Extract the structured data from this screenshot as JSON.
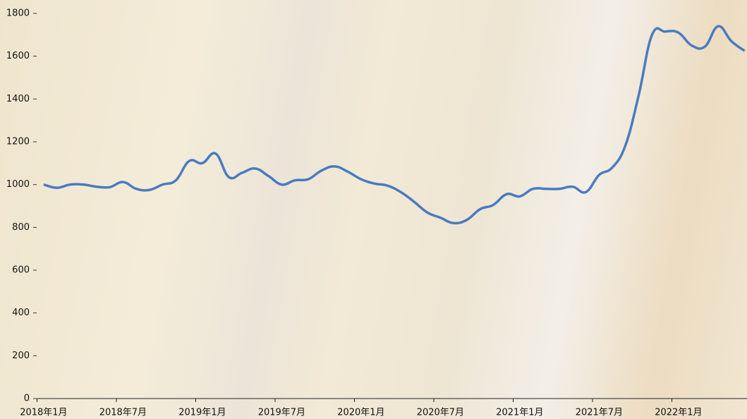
{
  "chart_data": {
    "type": "line",
    "categories": [
      "2018年1月",
      null,
      null,
      null,
      null,
      null,
      "2018年7月",
      null,
      null,
      null,
      null,
      null,
      "2019年1月",
      null,
      null,
      null,
      null,
      null,
      "2019年7月",
      null,
      null,
      null,
      null,
      null,
      "2020年1月",
      null,
      null,
      null,
      null,
      null,
      "2020年7月",
      null,
      null,
      null,
      null,
      null,
      "2021年1月",
      null,
      null,
      null,
      null,
      null,
      "2021年7月",
      null,
      null,
      null,
      null,
      null,
      "2022年1月",
      null,
      null,
      null,
      null,
      null
    ],
    "series": [
      {
        "color": "#4a7bbf",
        "values": [
          1000,
          985,
          1000,
          1000,
          990,
          988,
          1012,
          980,
          975,
          1000,
          1020,
          1110,
          1100,
          1145,
          1035,
          1055,
          1075,
          1040,
          1000,
          1020,
          1025,
          1065,
          1085,
          1060,
          1025,
          1005,
          995,
          965,
          920,
          870,
          845,
          820,
          835,
          885,
          905,
          955,
          945,
          980,
          980,
          980,
          990,
          965,
          1045,
          1080,
          1185,
          1420,
          1700,
          1715,
          1710,
          1650,
          1645,
          1740,
          1670,
          1625
        ]
      }
    ],
    "ylim": [
      0,
      1800
    ],
    "yticks": [
      0,
      200,
      400,
      600,
      800,
      1000,
      1200,
      1400,
      1600,
      1800
    ]
  }
}
